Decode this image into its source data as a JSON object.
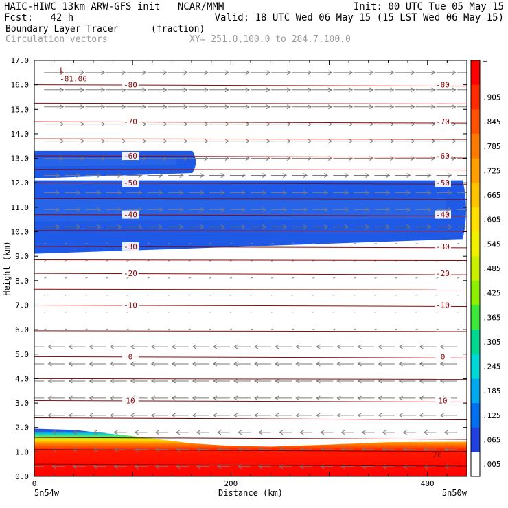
{
  "header": {
    "line1_left": "HAIC-HIWC 13km ARW-GFS init   NCAR/MMM",
    "line1_right": "Init: 00 UTC Tue 05 May 15",
    "line2_left": "Fcst:   42 h",
    "line2_right": "Valid: 18 UTC Wed 06 May 15 (15 LST Wed 06 May 15)",
    "field_name": "Boundary Layer Tracer",
    "field_units": "(fraction)",
    "vector_label": "Circulation vectors",
    "xy_label": "XY= 251.0,100.0 to 284.7,100.0"
  },
  "chart_data": {
    "type": "heatmap",
    "title": "Boundary Layer Tracer",
    "units": "(fraction)",
    "xlabel": "Distance (km)",
    "ylabel": "Height (km)",
    "xlim": [
      0,
      440
    ],
    "ylim": [
      0,
      17
    ],
    "x_ticks": [
      0,
      200,
      400
    ],
    "y_ticks": [
      0.0,
      1.0,
      2.0,
      3.0,
      4.0,
      5.0,
      6.0,
      7.0,
      8.0,
      9.0,
      10.0,
      11.0,
      12.0,
      13.0,
      14.0,
      15.0,
      16.0,
      17.0
    ],
    "x_endpoint_labels": [
      "5n54w",
      "5n50w"
    ],
    "colorbar": {
      "labels": [
        "–",
        ".905",
        ".845",
        ".785",
        ".725",
        ".665",
        ".605",
        ".545",
        ".485",
        ".425",
        ".365",
        ".305",
        ".245",
        ".185",
        ".125",
        ".065",
        ".005"
      ],
      "colors": [
        "#ff0000",
        "#ff2a00",
        "#ff5200",
        "#ff7a00",
        "#ffa000",
        "#ffc400",
        "#ffe000",
        "#f0f000",
        "#c8f000",
        "#8cf000",
        "#3ce83c",
        "#00d890",
        "#00d8d8",
        "#00a8f0",
        "#0070f0",
        "#2040e0",
        "#ffffff"
      ]
    },
    "temperature_contours": [
      {
        "label": "10",
        "y": 3.1
      },
      {
        "label": "0",
        "y": 4.9
      },
      {
        "label": "-10",
        "y": 7.0
      },
      {
        "label": "-20",
        "y": 8.3
      },
      {
        "label": "-30",
        "y": 9.4
      },
      {
        "label": "-40",
        "y": 10.7
      },
      {
        "label": "-50",
        "y": 12.0
      },
      {
        "label": "-60",
        "y": 13.1
      },
      {
        "label": "-70",
        "y": 14.5
      },
      {
        "label": "-80",
        "y": 16.0
      }
    ],
    "extra_contour_label": {
      "label": "20",
      "x": 410,
      "y": 0.9
    },
    "min_label": {
      "label": "L",
      "value": "-81.06",
      "x": 12,
      "y": 16.6
    },
    "tracer_surface_layer": {
      "profile_top_km": [
        [
          0,
          1.95
        ],
        [
          40,
          1.9
        ],
        [
          100,
          1.65
        ],
        [
          160,
          1.35
        ],
        [
          200,
          1.25
        ],
        [
          240,
          1.22
        ],
        [
          300,
          1.3
        ],
        [
          360,
          1.4
        ],
        [
          440,
          1.42
        ]
      ]
    },
    "tracer_upper_layers": [
      {
        "x_start": 0,
        "x_end": 165,
        "bottom_km": 12.4,
        "top_km": 13.3
      },
      {
        "x_start": 0,
        "x_end": 440,
        "bottom_km": 9.7,
        "top_km": 12.1
      }
    ]
  }
}
